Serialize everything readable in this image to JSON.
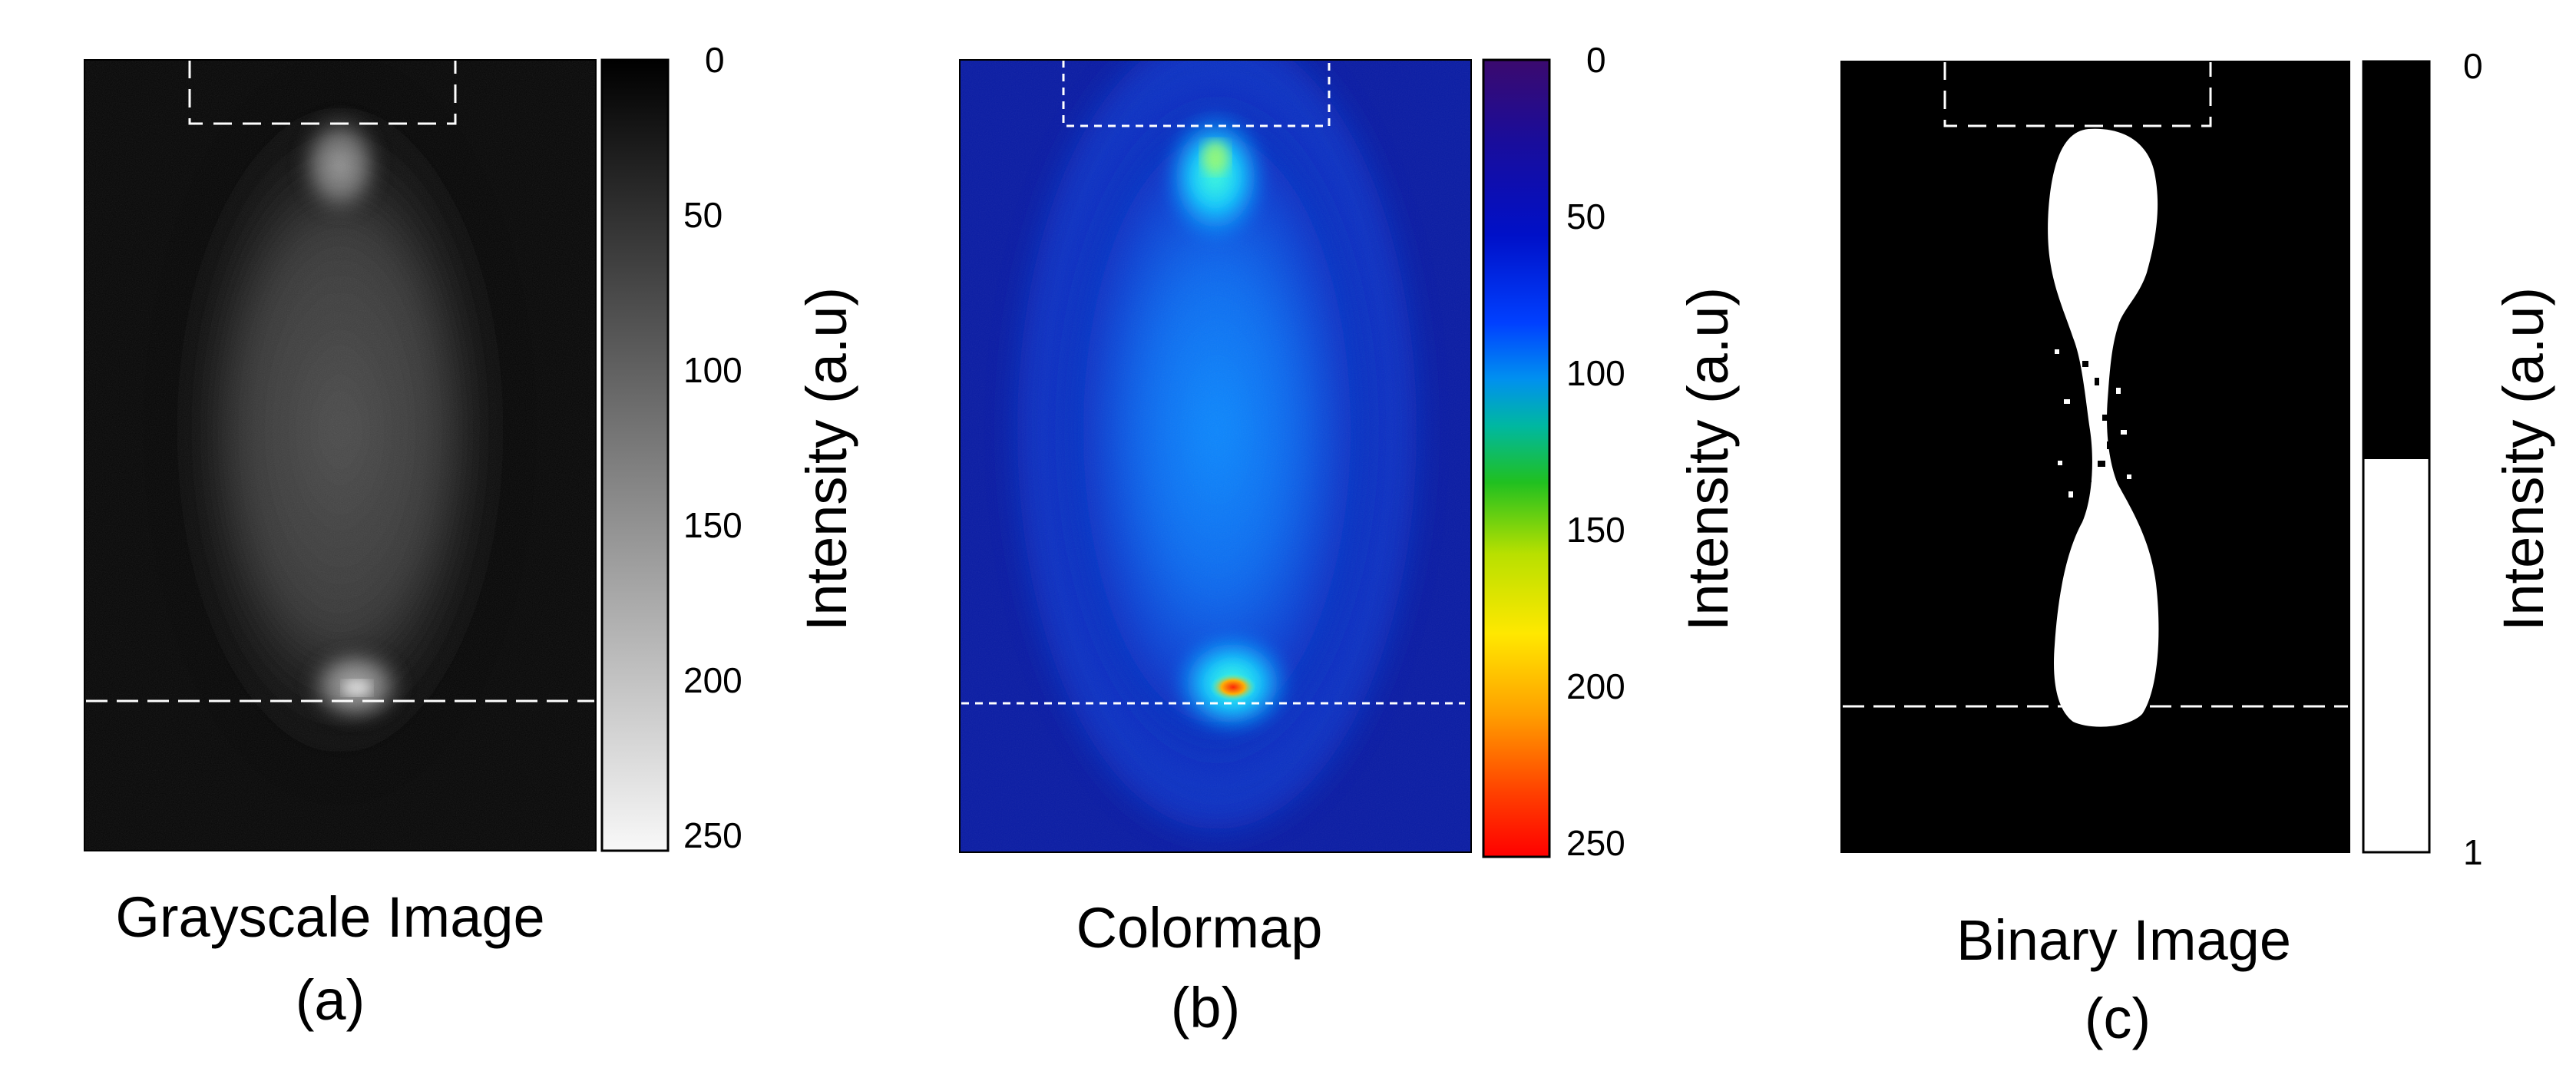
{
  "figure": {
    "panels": [
      {
        "id": "a",
        "title": "Grayscale Image",
        "letter": "(a)",
        "colorbar_label": "Intensity (a.u)",
        "colorbar_ticks": [
          "0",
          "50",
          "100",
          "150",
          "200",
          "250"
        ],
        "colorbar_type": "gray"
      },
      {
        "id": "b",
        "title": "Colormap",
        "letter": "(b)",
        "colorbar_label": "Intensity (a.u)",
        "colorbar_ticks": [
          "0",
          "50",
          "100",
          "150",
          "200",
          "250"
        ],
        "colorbar_type": "jet"
      },
      {
        "id": "c",
        "title": "Binary Image",
        "letter": "(c)",
        "colorbar_label": "Intensity (a.u)",
        "colorbar_ticks": [
          "0",
          "1"
        ],
        "colorbar_type": "binary"
      }
    ],
    "colors": {
      "gray_dark": "#050505",
      "gray_light": "#f5f5f5",
      "jet_top": "#3a0a70",
      "jet_bottom": "#ff1a00",
      "background_blue": "#0a1aa0",
      "binary_black": "#000000",
      "binary_white": "#ffffff"
    }
  }
}
